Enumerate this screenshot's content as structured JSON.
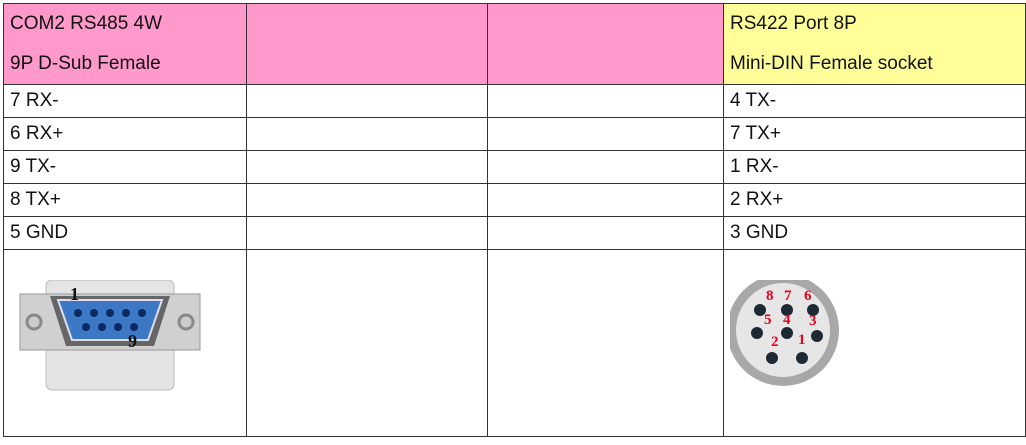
{
  "colors": {
    "left_header": "#ff99cc",
    "right_header": "#ffff99"
  },
  "left_header": {
    "line1": "COM2 RS485 4W",
    "line2": "9P D-Sub Female"
  },
  "right_header": {
    "line1": "RS422 Port 8P",
    "line2": "Mini-DIN Female socket"
  },
  "rows": [
    {
      "left": "7 RX-",
      "right": "4 TX-"
    },
    {
      "left": "6 RX+",
      "right": "7 TX+"
    },
    {
      "left": "9 TX-",
      "right": "1 RX-"
    },
    {
      "left": "8 TX+",
      "right": "2 RX+"
    },
    {
      "left": "5 GND",
      "right": "3 GND"
    }
  ],
  "dsub_labels": {
    "pin1": "1",
    "pin9": "9"
  },
  "mindin_labels": [
    "8",
    "7",
    "6",
    "5",
    "4",
    "3",
    "2",
    "1"
  ]
}
